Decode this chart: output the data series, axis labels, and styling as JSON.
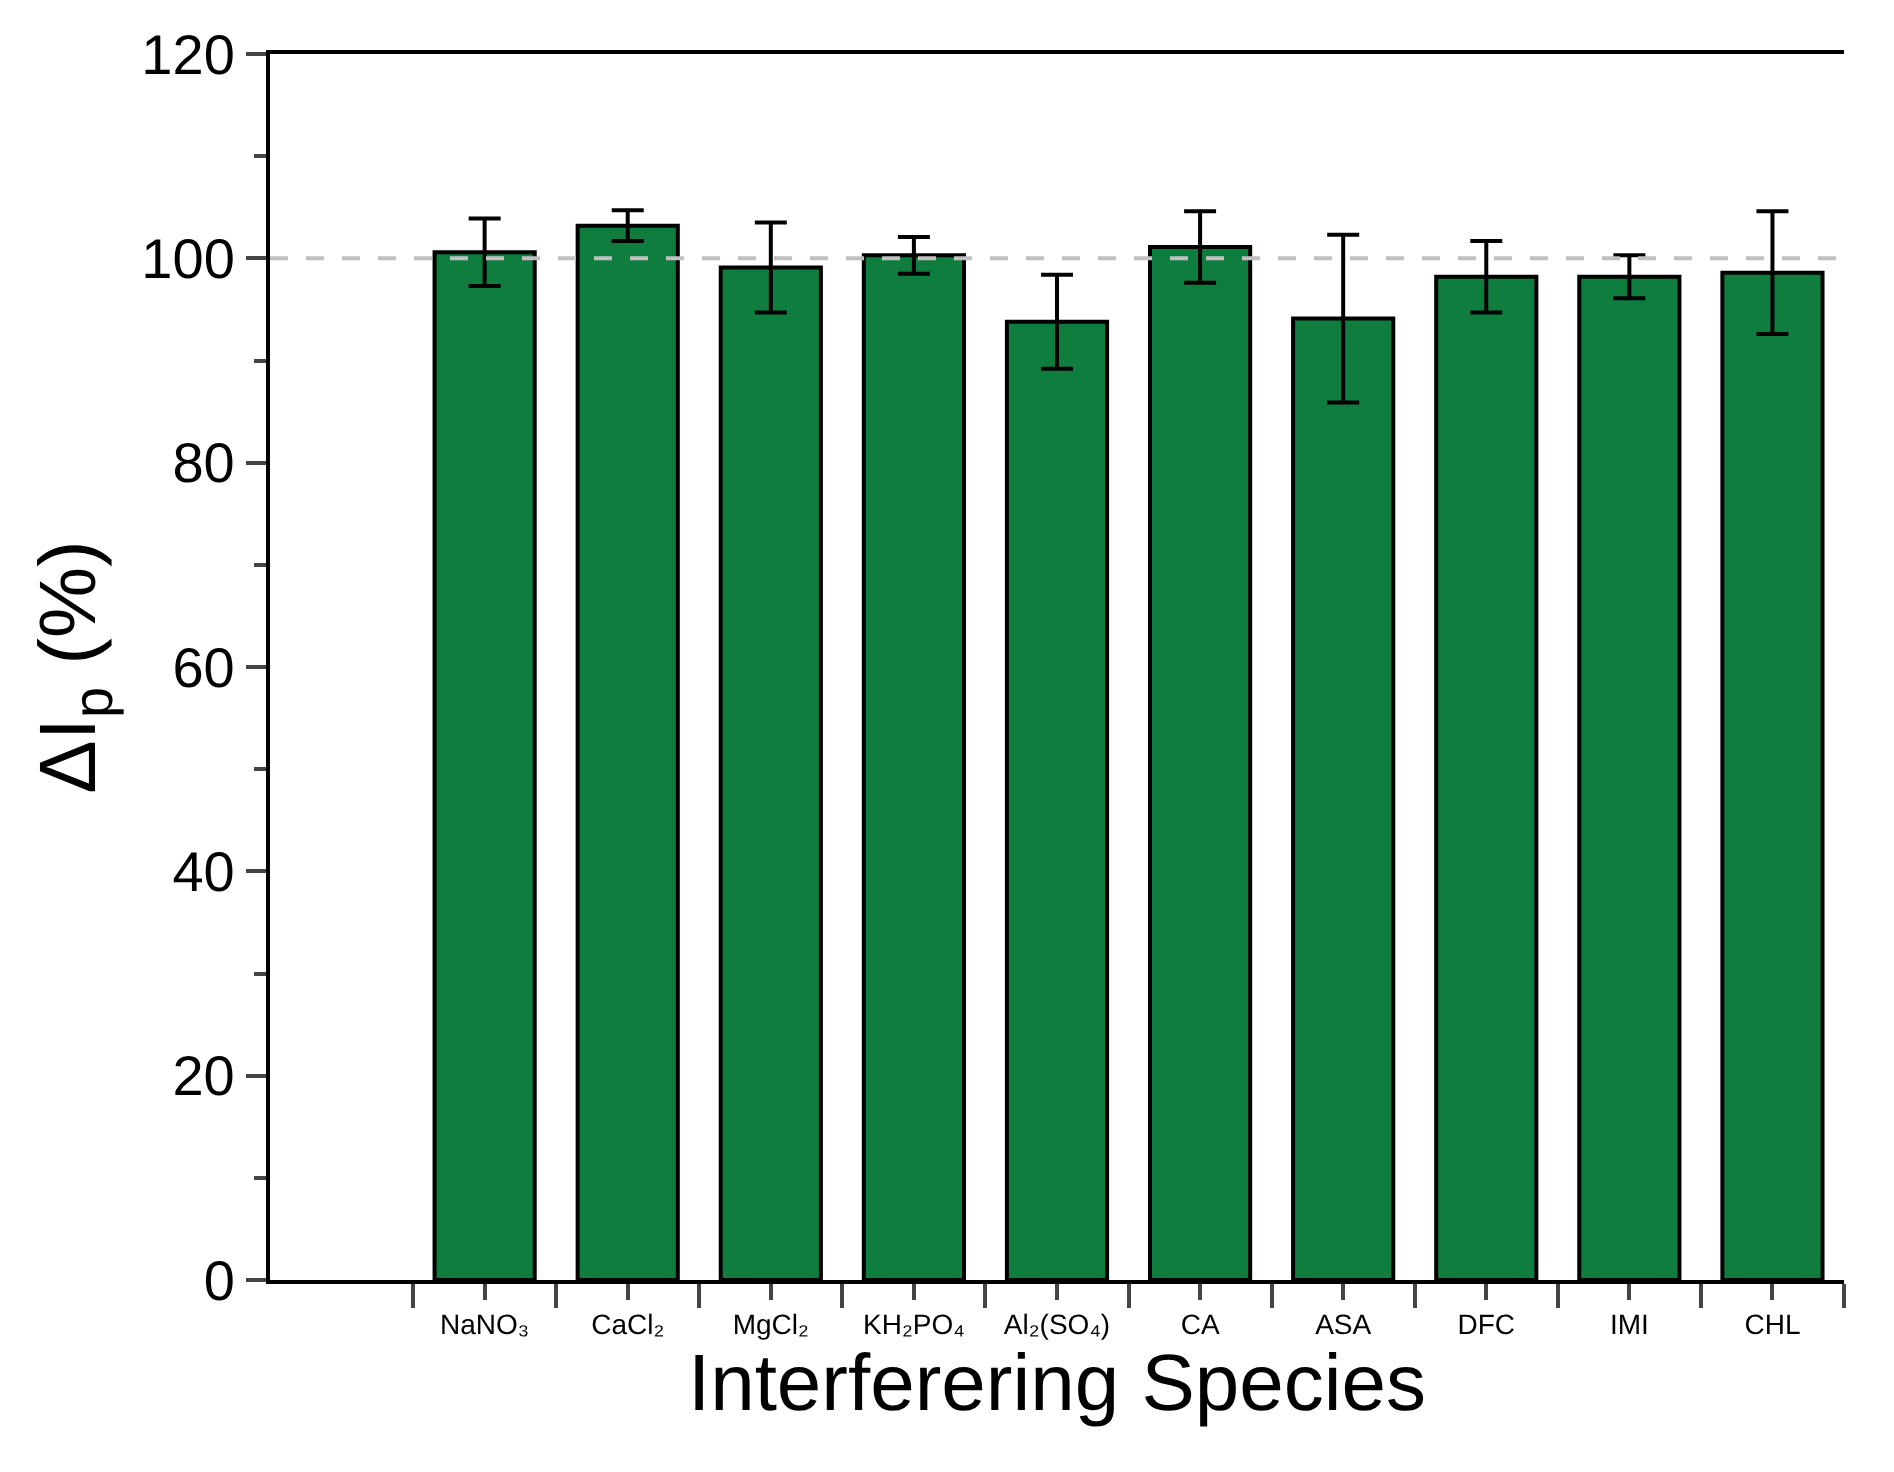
{
  "chart_data": {
    "type": "bar",
    "xlabel": "Interferering Species",
    "ylabel": "ΔI$_{p}$ (%)",
    "categories": [
      "NaNO₃",
      "CaCl₂",
      "MgCl₂",
      "KH₂PO₄",
      "Al₂(SO₄)",
      "CA",
      "ASA",
      "DFC",
      "IMI",
      "CHL"
    ],
    "values": [
      100.6,
      103.2,
      99.1,
      100.3,
      93.8,
      101.1,
      94.1,
      98.2,
      98.2,
      98.6
    ],
    "errors": [
      3.3,
      1.5,
      4.4,
      1.8,
      4.6,
      3.5,
      8.2,
      3.5,
      2.1,
      6
    ],
    "color": "#0e7d3e",
    "ylim": [
      0,
      120
    ],
    "yticks": [
      0,
      20,
      40,
      60,
      80,
      100,
      120
    ],
    "ref_lines": [
      {
        "axis": "y",
        "value": 100,
        "label": null,
        "color": "#c0c0c0",
        "line_style": "dashed"
      }
    ],
    "legend": false
  }
}
